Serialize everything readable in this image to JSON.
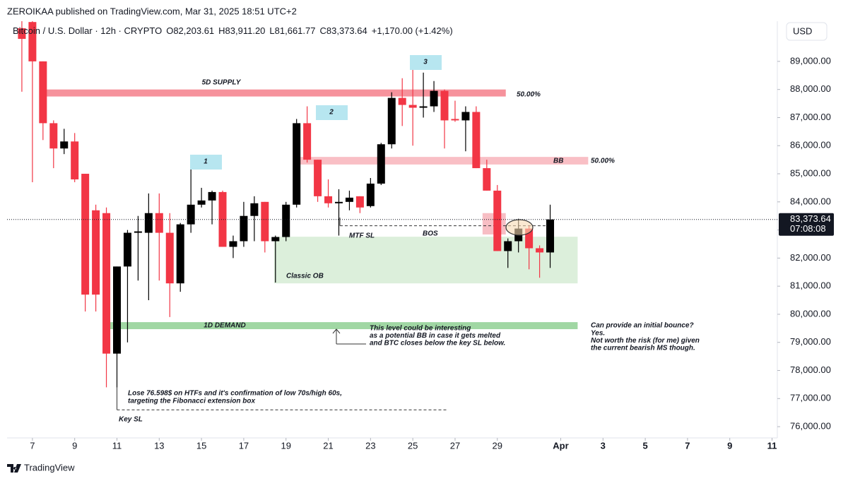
{
  "chart_data": {
    "type": "candlestick",
    "header": "ZEROIKAA published on TradingView.com, Mar 31, 2025 18:51 UTC+2",
    "legend": {
      "symbol": "Bitcoin / U.S. Dollar · 12h · CRYPTO",
      "values": [
        "O82,203.61",
        "H83,911.20",
        "L81,661.77",
        "C83,373.64",
        "+1,170.00 (+1.42%)"
      ]
    },
    "currency": "USD",
    "brand": "TradingView",
    "x": [
      6.5,
      7,
      7.5,
      8,
      8.5,
      9,
      9.5,
      10,
      10.5,
      11,
      11.5,
      12,
      12.5,
      13,
      13.5,
      14,
      14.5,
      15,
      15.5,
      16,
      16.5,
      17,
      17.5,
      18,
      18.5,
      19,
      19.5,
      20,
      20.5,
      21,
      21.5,
      22,
      22.5,
      23,
      23.5,
      24,
      24.5,
      25,
      25.5,
      26,
      26.5,
      27,
      27.5,
      28,
      28.5,
      29,
      29.5,
      30,
      30.5,
      31,
      31.5
    ],
    "open": [
      90180,
      90400,
      89000,
      86800,
      85900,
      86150,
      85000,
      83700,
      83600,
      78600,
      81700,
      82900,
      82900,
      83600,
      82900,
      81100,
      83200,
      83900,
      84050,
      84350,
      82400,
      82600,
      83500,
      84000,
      82600,
      82750,
      83900,
      86800,
      85500,
      84200,
      83950,
      84000,
      84200,
      83850,
      84650,
      86050,
      87700,
      87450,
      87350,
      87400,
      87950,
      86950,
      86900,
      87200,
      85200,
      84400,
      82250,
      82600,
      83050,
      82350,
      82200
    ],
    "high": [
      90430,
      90430,
      89000,
      86900,
      86600,
      86450,
      85000,
      83900,
      83800,
      81700,
      83000,
      83500,
      84300,
      84300,
      83600,
      83250,
      85200,
      84500,
      84400,
      84400,
      82800,
      84000,
      84200,
      84000,
      82800,
      84000,
      86950,
      87400,
      85500,
      84800,
      84450,
      84400,
      84200,
      84850,
      86100,
      87900,
      88400,
      88750,
      88600,
      88300,
      88000,
      87600,
      87400,
      87400,
      85500,
      84600,
      82700,
      83400,
      83150,
      82450,
      83900
    ],
    "low": [
      87920,
      84700,
      86200,
      85200,
      85700,
      84700,
      80100,
      80100,
      77400,
      77400,
      79000,
      81200,
      80500,
      81200,
      79900,
      80800,
      82900,
      83800,
      83200,
      82400,
      82000,
      82400,
      82600,
      82200,
      81130,
      82600,
      83800,
      85400,
      84000,
      83800,
      82800,
      83700,
      83600,
      83800,
      84600,
      85900,
      86700,
      86000,
      87000,
      87200,
      85900,
      86850,
      85800,
      85200,
      84400,
      82250,
      81650,
      82200,
      81600,
      81300,
      81650
    ],
    "close": [
      89800,
      89000,
      86800,
      85900,
      86150,
      84800,
      80700,
      80700,
      78600,
      81700,
      82900,
      82950,
      83600,
      82900,
      81100,
      83200,
      83900,
      84050,
      84350,
      82400,
      82600,
      83500,
      83950,
      82600,
      82750,
      83900,
      86800,
      85500,
      84200,
      83950,
      84000,
      84150,
      83800,
      84650,
      86050,
      87700,
      87450,
      87350,
      87400,
      87950,
      86900,
      86900,
      87200,
      85200,
      84400,
      82250,
      82600,
      83050,
      82350,
      82200,
      83373.64
    ],
    "up_color": "#000000",
    "down_color": "#f23645",
    "xlim": [
      5.8,
      42.25
    ],
    "ylim": [
      75600,
      90430
    ],
    "xticks": [
      7,
      9,
      11,
      13,
      15,
      17,
      19,
      21,
      23,
      25,
      27,
      29,
      {
        "value": 32,
        "label": "Apr"
      },
      {
        "value": 34,
        "label": "3"
      },
      {
        "value": 36,
        "label": "5"
      },
      {
        "value": 38,
        "label": "7"
      },
      {
        "value": 40,
        "label": "9"
      },
      {
        "value": 42,
        "label": "11"
      }
    ],
    "yticks": [
      {
        "value": 76000,
        "label": "76,000.00"
      },
      {
        "value": 77000,
        "label": "77,000.00"
      },
      {
        "value": 78000,
        "label": "78,000.00"
      },
      {
        "value": 79000,
        "label": "79,000.00"
      },
      {
        "value": 80000,
        "label": "80,000.00"
      },
      {
        "value": 81000,
        "label": "81,000.00"
      },
      {
        "value": 82000,
        "label": "82,000.00"
      },
      {
        "value": 83000,
        "label": "83,000.00"
      },
      {
        "value": 84000,
        "label": "84,000.00"
      },
      {
        "value": 85000,
        "label": "85,000.00"
      },
      {
        "value": 86000,
        "label": "86,000.00"
      },
      {
        "value": 87000,
        "label": "87,000.00"
      },
      {
        "value": 88000,
        "label": "88,000.00"
      },
      {
        "value": 89000,
        "label": "89,000.00"
      }
    ],
    "grid": false,
    "last_price": {
      "value": 83373.64,
      "label": "83,373.64",
      "countdown": "07:08:08"
    },
    "zones": [
      {
        "label": "5D SUPPLY",
        "side_label": "50.00%",
        "x": [
          7.5,
          29.4
        ],
        "y": [
          88000,
          87750
        ],
        "color": "#f47f8b"
      },
      {
        "label": "BB",
        "side_label": "50.00%",
        "x": [
          19.67,
          33.3
        ],
        "y": [
          85600,
          85330
        ],
        "color": "#f8b4bb"
      },
      {
        "label": "Classic OB",
        "x": [
          18.44,
          32.8
        ],
        "y": [
          82760,
          81100
        ],
        "color": "#d6ecd5"
      },
      {
        "label": "1D DEMAND",
        "x": [
          10.65,
          32.8
        ],
        "y": [
          79720,
          79470
        ],
        "color": "#8fd093"
      },
      {
        "x": [
          28.3,
          29.4
        ],
        "y": [
          83600,
          82840
        ],
        "color": "#f6b3ba"
      }
    ],
    "levels": [
      {
        "label": "MTF SL",
        "value": 83150,
        "x": [
          21.55,
          31.6
        ]
      },
      {
        "label": "Key SL",
        "value": 76598,
        "x": [
          11,
          26.6
        ]
      }
    ],
    "bos": "BOS",
    "waves": [
      "1",
      "2",
      "3"
    ],
    "notes": [
      {
        "lines": [
          "Lose 76.598$ on HTFs and it's confirmation of low 70s/high 60s,",
          "targeting the Fibonacci extension box"
        ]
      },
      {
        "lines": [
          "This level could be interesting",
          "as a potential BB in case it gets melted",
          "and BTC closes below the key SL below."
        ]
      },
      {
        "lines": [
          "Can provide an initial bounce?",
          "Yes.",
          "Not worth the risk (for me) given",
          "the current bearish MS though."
        ]
      }
    ]
  }
}
